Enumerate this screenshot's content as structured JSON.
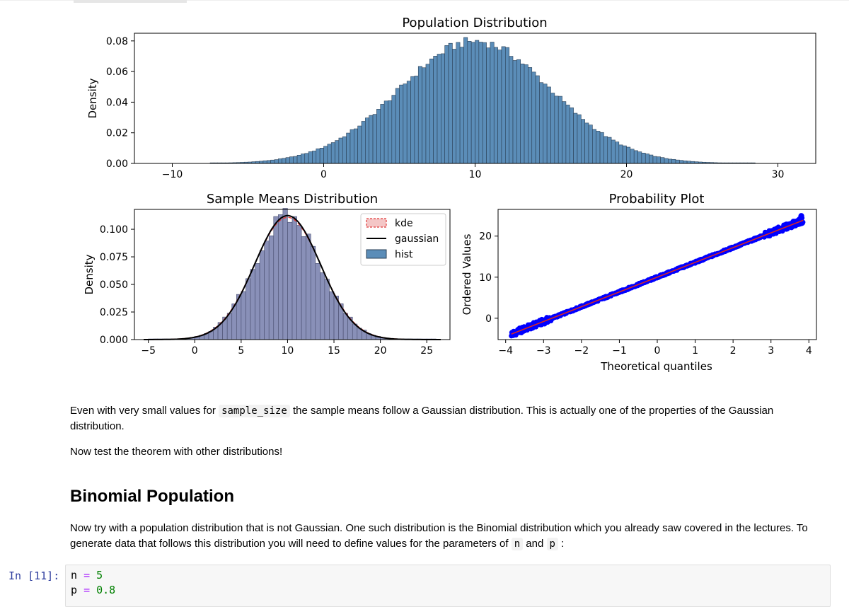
{
  "figure": {
    "population": {
      "title": "Population Distribution",
      "ylabel": "Density",
      "xticks": [
        "−10",
        "0",
        "10",
        "20",
        "30"
      ],
      "yticks": [
        "0.00",
        "0.02",
        "0.04",
        "0.06",
        "0.08"
      ]
    },
    "sample_means": {
      "title": "Sample Means Distribution",
      "ylabel": "Density",
      "xticks": [
        "−5",
        "0",
        "5",
        "10",
        "15",
        "20",
        "25"
      ],
      "yticks": [
        "0.000",
        "0.025",
        "0.050",
        "0.075",
        "0.100"
      ],
      "legend": [
        "kde",
        "gaussian",
        "hist"
      ]
    },
    "probplot": {
      "title": "Probability Plot",
      "xlabel": "Theoretical quantiles",
      "ylabel": "Ordered Values",
      "xticks": [
        "−4",
        "−3",
        "−2",
        "−1",
        "0",
        "1",
        "2",
        "3",
        "4"
      ],
      "yticks": [
        "0",
        "10",
        "20"
      ]
    }
  },
  "chart_data": [
    {
      "type": "bar",
      "title": "Population Distribution",
      "xlabel": "",
      "ylabel": "Density",
      "xlim": [
        -12.5,
        32.5
      ],
      "ylim": [
        0,
        0.085
      ],
      "distribution": {
        "family": "normal",
        "mean": 10,
        "sd": 5
      },
      "peak_density": 0.08
    },
    {
      "type": "bar",
      "title": "Sample Means Distribution",
      "xlabel": "",
      "ylabel": "Density",
      "xlim": [
        -6.5,
        27.5
      ],
      "ylim": [
        0,
        0.118
      ],
      "series": [
        {
          "name": "hist",
          "distribution": {
            "family": "normal",
            "mean": 10,
            "sd": 3.6
          }
        },
        {
          "name": "kde",
          "distribution": {
            "family": "normal",
            "mean": 10,
            "sd": 3.6
          }
        },
        {
          "name": "gaussian",
          "distribution": {
            "family": "normal",
            "mean": 10,
            "sd": 3.55
          }
        }
      ],
      "legend_position": "upper-right"
    },
    {
      "type": "scatter",
      "title": "Probability Plot",
      "xlabel": "Theoretical quantiles",
      "ylabel": "Ordered Values",
      "xlim": [
        -4.2,
        4.2
      ],
      "ylim": [
        -5.2,
        26.5
      ],
      "fit_line": {
        "slope": 3.6,
        "intercept": 10
      },
      "x_range": [
        -3.85,
        3.85
      ]
    }
  ],
  "colors": {
    "hist_fill": "#5b8db8",
    "hist_edge": "#2a3f55",
    "kde_line": "#e03a3a",
    "gaussian_line": "#000000",
    "scatter_point": "#0000ff",
    "fit_line": "#d62728"
  },
  "notebook": {
    "para1_a": "Even with very small values for ",
    "para1_code": "sample_size",
    "para1_b": " the sample means follow a Gaussian distribution. This is actually one of the properties of the Gaussian distribution.",
    "para2": "Now test the theorem with other distributions!",
    "heading": "Binomial Population",
    "para3_a": "Now try with a population distribution that is not Gaussian. One such distribution is the Binomial distribution which you already saw covered in the lectures. To generate data that follows this distribution you will need to define values for the parameters of ",
    "para3_code1": "n",
    "para3_mid": " and ",
    "para3_code2": "p",
    "para3_end": " :",
    "prompt": "In [11]:",
    "code": {
      "l1_var": "n",
      "l1_op": "=",
      "l1_val": "5",
      "l2_var": "p",
      "l2_op": "=",
      "l2_val": "0.8"
    }
  }
}
